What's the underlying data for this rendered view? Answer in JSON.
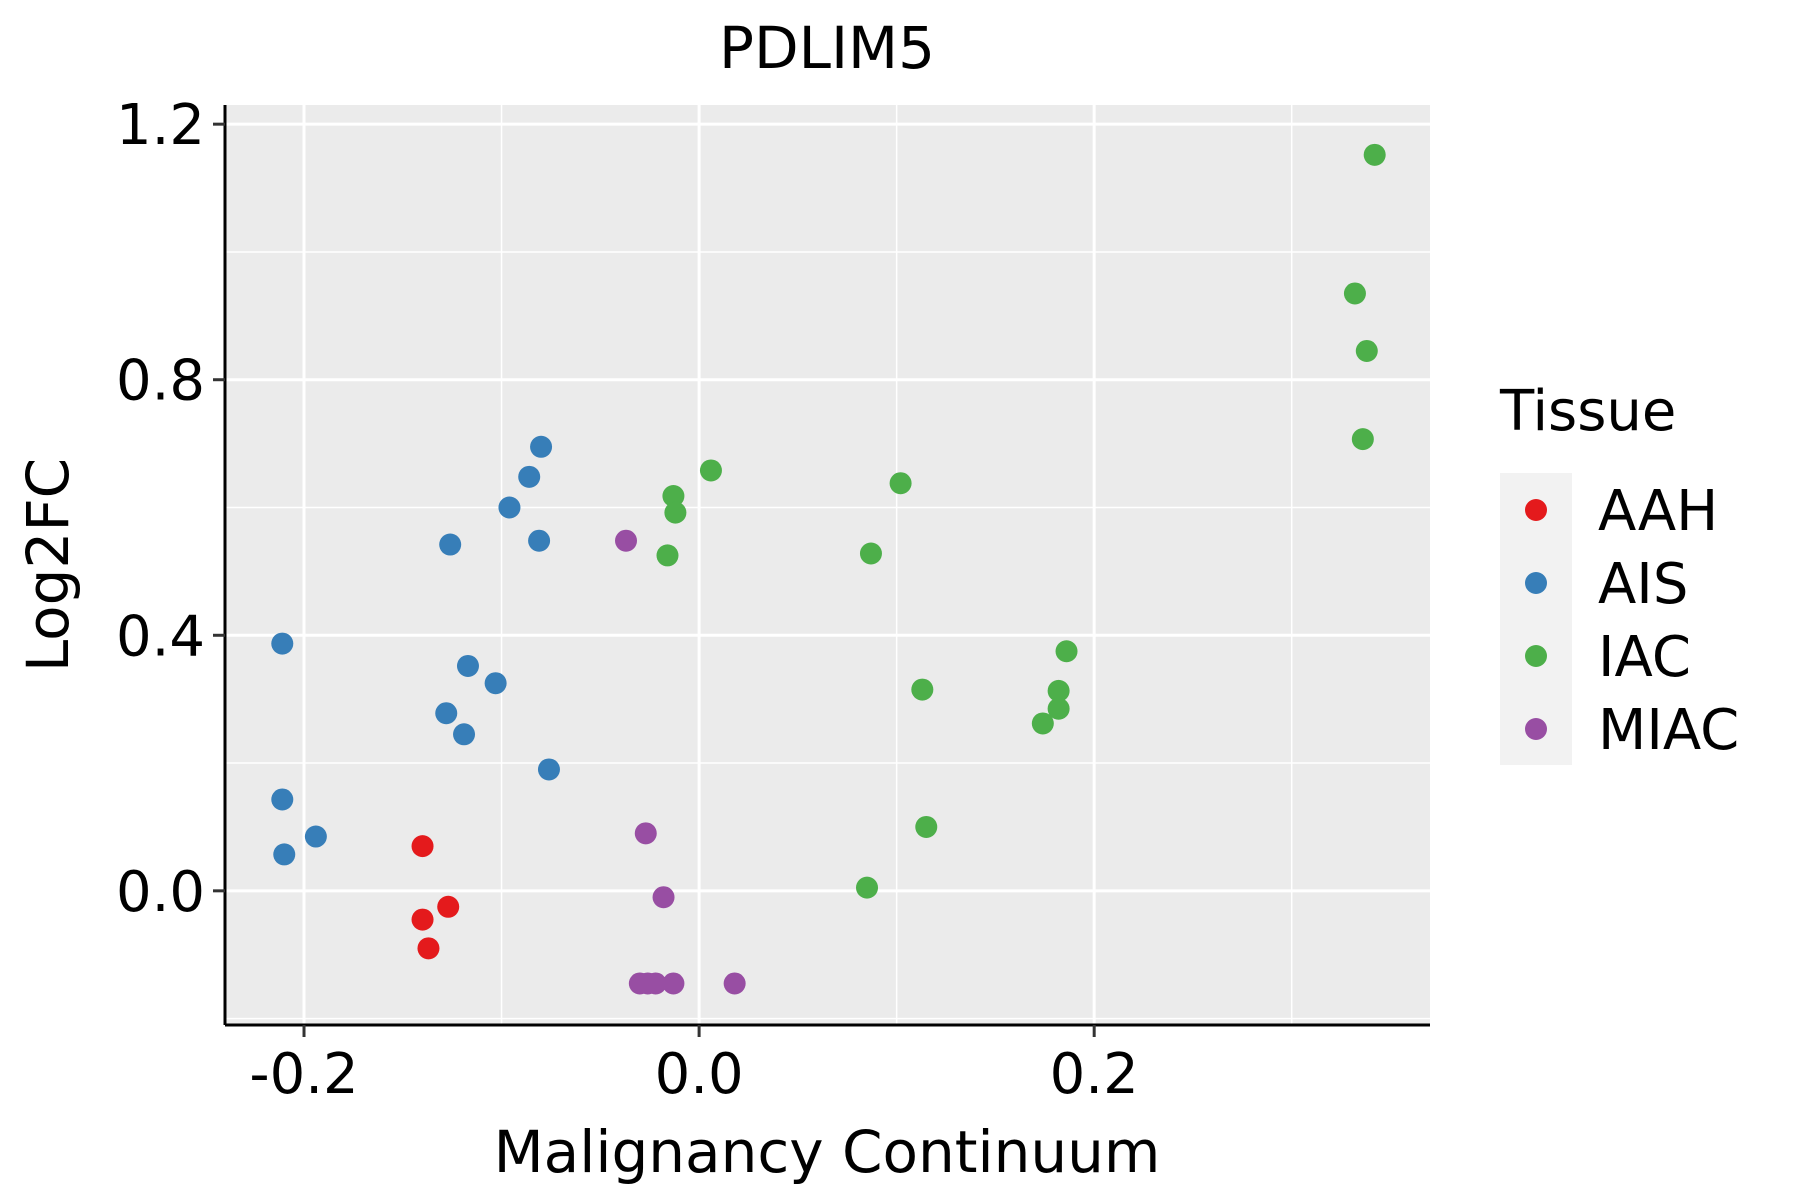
{
  "chart_data": {
    "type": "scatter",
    "title": "PDLIM5",
    "xlabel": "Malignancy Continuum",
    "ylabel": "Log2FC",
    "xlim": [
      -0.24,
      0.37
    ],
    "ylim": [
      -0.21,
      1.23
    ],
    "x_ticks": [
      -0.2,
      0.0,
      0.2
    ],
    "x_tick_labels": [
      "-0.2",
      "0.0",
      "0.2"
    ],
    "y_ticks": [
      0.0,
      0.4,
      0.8,
      1.2
    ],
    "y_tick_labels": [
      "0.0",
      "0.4",
      "0.8",
      "1.2"
    ],
    "grid": true,
    "legend": {
      "title": "Tissue",
      "position": "right",
      "entries": [
        "AAH",
        "AIS",
        "IAC",
        "MIAC"
      ]
    },
    "colors": {
      "AAH": "#e41a1c",
      "AIS": "#377eb8",
      "IAC": "#4daf4a",
      "MIAC": "#984ea3",
      "panel": "#ebebeb",
      "grid": "#ffffff"
    },
    "series": [
      {
        "name": "AAH",
        "points": [
          {
            "x": -0.14,
            "y": 0.07
          },
          {
            "x": -0.127,
            "y": -0.025
          },
          {
            "x": -0.14,
            "y": -0.045
          },
          {
            "x": -0.137,
            "y": -0.09
          }
        ]
      },
      {
        "name": "AIS",
        "points": [
          {
            "x": -0.08,
            "y": 0.695
          },
          {
            "x": -0.086,
            "y": 0.648
          },
          {
            "x": -0.096,
            "y": 0.6
          },
          {
            "x": -0.126,
            "y": 0.542
          },
          {
            "x": -0.081,
            "y": 0.548
          },
          {
            "x": -0.211,
            "y": 0.387
          },
          {
            "x": -0.117,
            "y": 0.352
          },
          {
            "x": -0.103,
            "y": 0.325
          },
          {
            "x": -0.128,
            "y": 0.278
          },
          {
            "x": -0.119,
            "y": 0.245
          },
          {
            "x": -0.076,
            "y": 0.19
          },
          {
            "x": -0.211,
            "y": 0.143
          },
          {
            "x": -0.194,
            "y": 0.085
          },
          {
            "x": -0.21,
            "y": 0.057
          }
        ]
      },
      {
        "name": "IAC",
        "points": [
          {
            "x": 0.342,
            "y": 1.152
          },
          {
            "x": 0.332,
            "y": 0.935
          },
          {
            "x": 0.338,
            "y": 0.845
          },
          {
            "x": 0.336,
            "y": 0.707
          },
          {
            "x": 0.006,
            "y": 0.658
          },
          {
            "x": 0.102,
            "y": 0.638
          },
          {
            "x": -0.013,
            "y": 0.618
          },
          {
            "x": -0.012,
            "y": 0.592
          },
          {
            "x": -0.016,
            "y": 0.525
          },
          {
            "x": 0.087,
            "y": 0.528
          },
          {
            "x": 0.186,
            "y": 0.375
          },
          {
            "x": 0.113,
            "y": 0.315
          },
          {
            "x": 0.182,
            "y": 0.313
          },
          {
            "x": 0.182,
            "y": 0.285
          },
          {
            "x": 0.174,
            "y": 0.262
          },
          {
            "x": 0.115,
            "y": 0.1
          },
          {
            "x": 0.085,
            "y": 0.005
          }
        ]
      },
      {
        "name": "MIAC",
        "points": [
          {
            "x": -0.037,
            "y": 0.548
          },
          {
            "x": -0.027,
            "y": 0.09
          },
          {
            "x": -0.018,
            "y": -0.01
          },
          {
            "x": -0.03,
            "y": -0.145
          },
          {
            "x": -0.026,
            "y": -0.145
          },
          {
            "x": -0.022,
            "y": -0.145
          },
          {
            "x": -0.013,
            "y": -0.145
          },
          {
            "x": 0.018,
            "y": -0.145
          }
        ]
      }
    ]
  }
}
